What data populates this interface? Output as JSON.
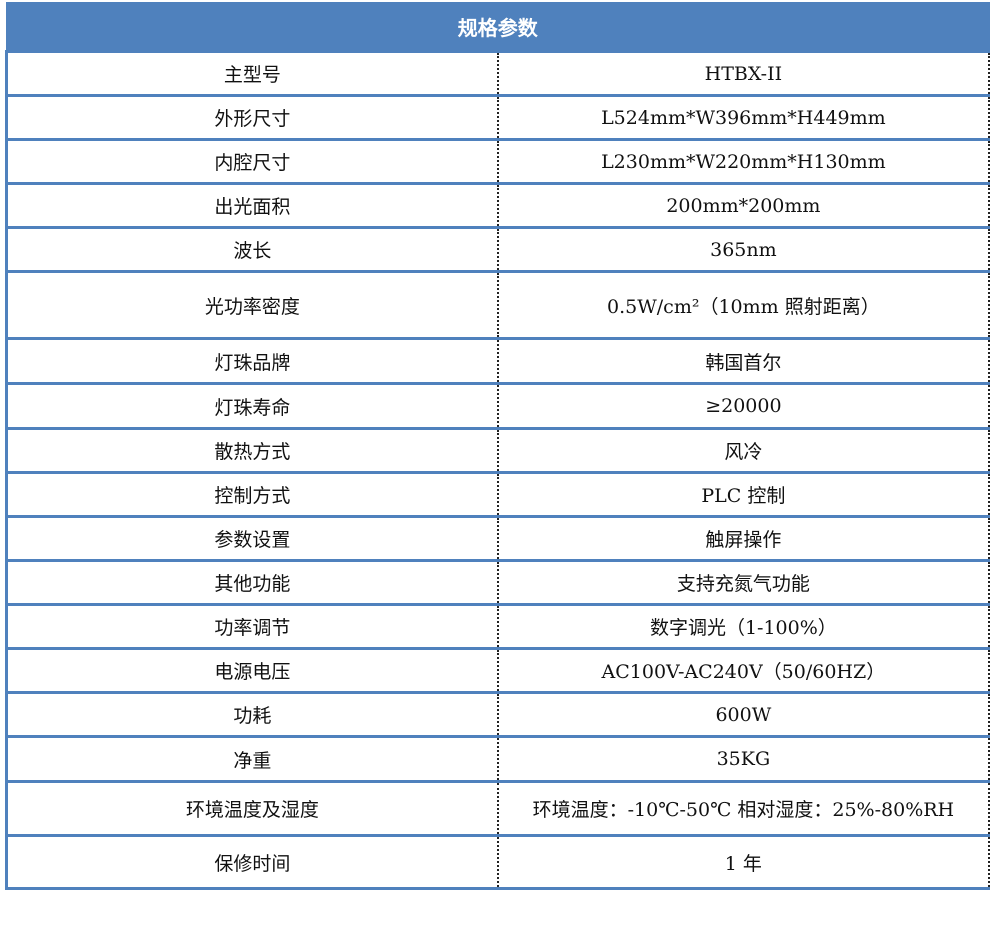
{
  "title": "规格参数",
  "rows": [
    {
      "label": "主型号",
      "value": "HTBX-II"
    },
    {
      "label": "外形尺寸",
      "value": "L524mm*W396mm*H449mm"
    },
    {
      "label": "内腔尺寸",
      "value": "L230mm*W220mm*H130mm"
    },
    {
      "label": "出光面积",
      "value": "200mm*200mm"
    },
    {
      "label": "波长",
      "value": "365nm"
    },
    {
      "label": "光功率密度",
      "value": "0.5W/cm²（10mm 照射距离）"
    },
    {
      "label": "灯珠品牌",
      "value": "韩国首尔"
    },
    {
      "label": "灯珠寿命",
      "value": "≥20000"
    },
    {
      "label": "散热方式",
      "value": "风冷"
    },
    {
      "label": "控制方式",
      "value": "PLC 控制"
    },
    {
      "label": "参数设置",
      "value": "触屏操作"
    },
    {
      "label": "其他功能",
      "value": "支持充氮气功能"
    },
    {
      "label": "功率调节",
      "value": "数字调光（1-100%）"
    },
    {
      "label": "电源电压",
      "value": "AC100V-AC240V（50/60HZ）"
    },
    {
      "label": "功耗",
      "value": "600W"
    },
    {
      "label": "净重",
      "value": "35KG"
    },
    {
      "label": "环境温度及湿度",
      "value": "环境温度：-10℃-50℃ 相对湿度：25%-80%RH"
    },
    {
      "label": "保修时间",
      "value": "1 年"
    }
  ]
}
